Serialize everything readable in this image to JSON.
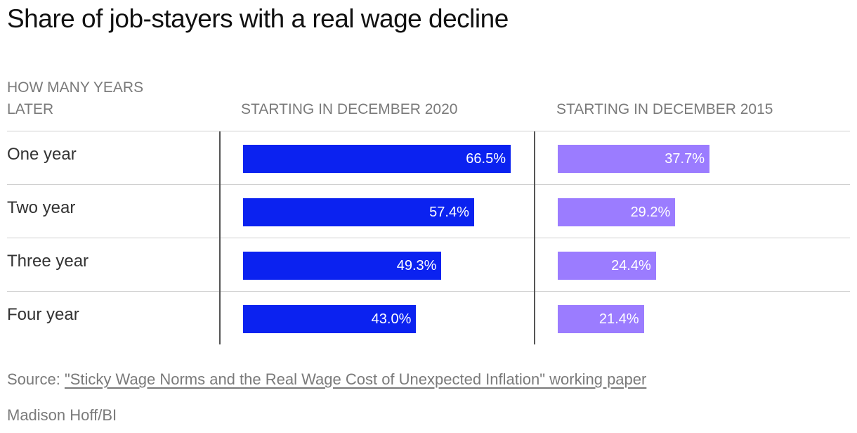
{
  "title": "Share of job-stayers with a real wage decline",
  "columns": {
    "label": "HOW MANY YEARS LATER",
    "series_a": "STARTING IN DECEMBER 2020",
    "series_b": "STARTING IN DECEMBER 2015"
  },
  "colors": {
    "series_a": "#0b22f0",
    "series_b": "#9b7cff"
  },
  "chart_data": {
    "type": "bar",
    "orientation": "horizontal",
    "categories": [
      "One year",
      "Two year",
      "Three year",
      "Four year"
    ],
    "series": [
      {
        "name": "STARTING IN DECEMBER 2020",
        "values": [
          66.5,
          57.4,
          49.3,
          43.0
        ],
        "labels": [
          "66.5%",
          "57.4%",
          "49.3%",
          "43.0%"
        ]
      },
      {
        "name": "STARTING IN DECEMBER 2015",
        "values": [
          37.7,
          29.2,
          24.4,
          21.4
        ],
        "labels": [
          "37.7%",
          "29.2%",
          "24.4%",
          "21.4%"
        ]
      }
    ],
    "unit": "%",
    "xlim": [
      0,
      100
    ]
  },
  "source": {
    "prefix": "Source:",
    "link_text": "\"Sticky Wage Norms and the Real Wage Cost of Unexpected Inflation\" working paper"
  },
  "credit": "Madison Hoff/BI"
}
